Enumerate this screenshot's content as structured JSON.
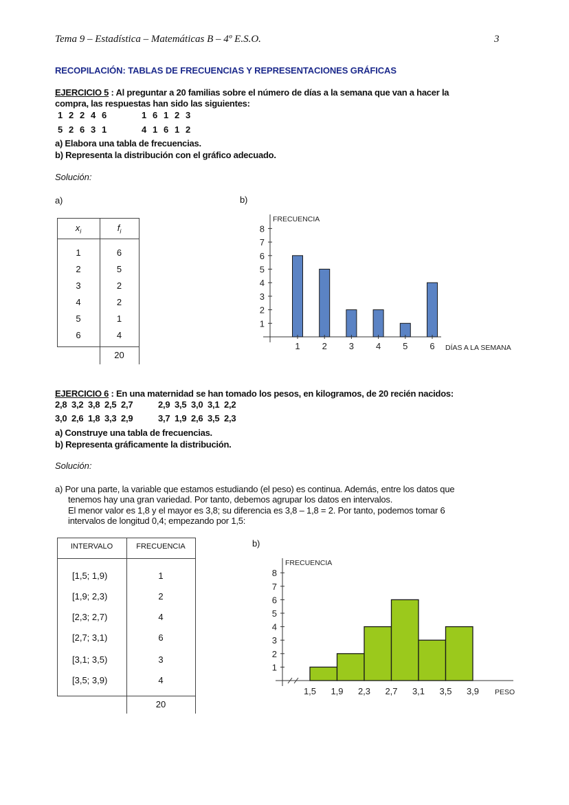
{
  "header": {
    "title": "Tema 9 – Estadística – Matemáticas B – 4º E.S.O.",
    "page_number": "3"
  },
  "section_title": "RECOPILACIÓN: TABLAS DE FRECUENCIAS Y REPRESENTACIONES GRÁFICAS",
  "ex5": {
    "label": "EJERCICIO 5",
    "statement_1": " : Al preguntar a 20 familias sobre el número de días a la semana que van a hacer la",
    "statement_2": "compra, las respuestas han sido las siguientes:",
    "data_rows": [
      [
        "1",
        "2",
        "2",
        "4",
        "6",
        "1",
        "6",
        "1",
        "2",
        "3"
      ],
      [
        "5",
        "2",
        "6",
        "3",
        "1",
        "4",
        "1",
        "6",
        "1",
        "2"
      ]
    ],
    "task_a": "a)  Elabora una tabla de frecuencias.",
    "task_b": "b)  Representa la distribución con el gráfico adecuado.",
    "solution_label": "Solución:",
    "part_a": "a)",
    "part_b": "b)",
    "table": {
      "headers": [
        "xi",
        "fi"
      ],
      "rows": [
        [
          "1",
          "6"
        ],
        [
          "2",
          "5"
        ],
        [
          "3",
          "2"
        ],
        [
          "4",
          "2"
        ],
        [
          "5",
          "1"
        ],
        [
          "6",
          "4"
        ]
      ],
      "total": "20"
    }
  },
  "ex6": {
    "label": "EJERCICIO 6",
    "statement": " : En una maternidad se han tomado los pesos, en kilogramos, de 20 recién nacidos:",
    "data_rows": [
      [
        "2,8",
        "3,2",
        "3,8",
        "2,5",
        "2,7",
        "2,9",
        "3,5",
        "3,0",
        "3,1",
        "2,2"
      ],
      [
        "3,0",
        "2,6",
        "1,8",
        "3,3",
        "2,9",
        "3,7",
        "1,9",
        "2,6",
        "3,5",
        "2,3"
      ]
    ],
    "task_a": "a)  Construye una tabla de frecuencias.",
    "task_b": "b)  Representa gráficamente la distribución.",
    "solution_label": "Solución:",
    "explanation": [
      "a)  Por una parte, la variable que estamos estudiando (el peso) es continua. Además, entre los datos que",
      "tenemos hay una gran variedad. Por tanto, debemos agrupar los datos en intervalos.",
      "El menor valor es 1,8 y el mayor es 3,8; su diferencia es 3,8 – 1,8 = 2. Por tanto, podemos tomar 6",
      "intervalos de longitud 0,4; empezando por 1,5:"
    ],
    "part_b": "b)",
    "table": {
      "headers": [
        "INTERVALO",
        "FRECUENCIA"
      ],
      "rows": [
        [
          "[1,5; 1,9)",
          "1"
        ],
        [
          "[1,9; 2,3)",
          "2"
        ],
        [
          "[2,3; 2,7)",
          "4"
        ],
        [
          "[2,7; 3,1)",
          "6"
        ],
        [
          "[3,1; 3,5)",
          "3"
        ],
        [
          "[3,5; 3,9)",
          "4"
        ]
      ],
      "total": "20"
    }
  },
  "chart_data": [
    {
      "type": "bar",
      "categories": [
        "1",
        "2",
        "3",
        "4",
        "5",
        "6"
      ],
      "values": [
        6,
        5,
        2,
        2,
        1,
        4
      ],
      "ylabel": "FRECUENCIA",
      "xlabel": "DÍAS A LA SEMANA",
      "yticks": [
        "1",
        "2",
        "3",
        "4",
        "5",
        "6",
        "7",
        "8"
      ],
      "ylim": [
        0,
        8
      ],
      "bar_color": "#5b83c4",
      "grid": false
    },
    {
      "type": "bar",
      "subtype": "histogram",
      "bin_edges": [
        "1,5",
        "1,9",
        "2,3",
        "2,7",
        "3,1",
        "3,5",
        "3,9"
      ],
      "values": [
        1,
        2,
        4,
        6,
        3,
        4
      ],
      "ylabel": "FRECUENCIA",
      "xlabel": "PESO",
      "yticks": [
        "1",
        "2",
        "3",
        "4",
        "5",
        "6",
        "7",
        "8"
      ],
      "ylim": [
        0,
        8
      ],
      "bar_color": "#9bc91c",
      "axis_break": true,
      "grid": false
    }
  ]
}
